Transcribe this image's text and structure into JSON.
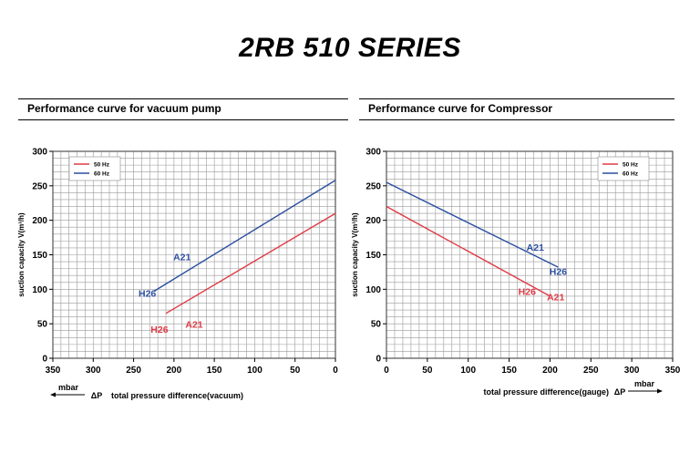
{
  "title": "2RB 510 SERIES",
  "chart_data": [
    {
      "type": "line",
      "title": "Performance curve for vacuum pump",
      "xlabel": "total pressure difference(vacuum)",
      "x_unit": "mbar",
      "delta_p": "ΔP",
      "ylabel": "suction capacity V(m³/h)",
      "xlim": [
        350,
        0
      ],
      "ylim": [
        0,
        300
      ],
      "x_ticks": [
        "350",
        "300",
        "250",
        "200",
        "150",
        "100",
        "50",
        "0"
      ],
      "y_ticks": [
        "0",
        "50",
        "100",
        "150",
        "200",
        "250",
        "300"
      ],
      "grid": true,
      "legend_position": "top-left",
      "series": [
        {
          "name": "50 Hz",
          "color": "#e03a45",
          "x": [
            210,
            0
          ],
          "y": [
            65,
            210
          ]
        },
        {
          "name": "60 Hz",
          "color": "#2b4ea0",
          "x": [
            225,
            0
          ],
          "y": [
            97,
            258
          ]
        }
      ],
      "annotations": [
        {
          "text": "A21",
          "x": 175,
          "y": 44,
          "color": "#e03a45"
        },
        {
          "text": "H26",
          "x": 218,
          "y": 37,
          "color": "#e03a45"
        },
        {
          "text": "A21",
          "x": 190,
          "y": 142,
          "color": "#2b4ea0"
        },
        {
          "text": "H26",
          "x": 233,
          "y": 89,
          "color": "#2b4ea0"
        }
      ]
    },
    {
      "type": "line",
      "title": "Performance curve for Compressor",
      "xlabel": "total pressure difference(gauge)",
      "x_unit": "mbar",
      "delta_p": "ΔP",
      "ylabel": "suction capacity V(m³/h)",
      "xlim": [
        0,
        350
      ],
      "ylim": [
        0,
        300
      ],
      "x_ticks": [
        "0",
        "50",
        "100",
        "150",
        "200",
        "250",
        "300",
        "350"
      ],
      "y_ticks": [
        "0",
        "50",
        "100",
        "150",
        "200",
        "250",
        "300"
      ],
      "grid": true,
      "legend_position": "top-right",
      "series": [
        {
          "name": "50 Hz",
          "color": "#e03a45",
          "x": [
            0,
            200
          ],
          "y": [
            220,
            90
          ]
        },
        {
          "name": "60 Hz",
          "color": "#2b4ea0",
          "x": [
            0,
            210
          ],
          "y": [
            255,
            132
          ]
        }
      ],
      "annotations": [
        {
          "text": "A21",
          "x": 182,
          "y": 156,
          "color": "#2b4ea0"
        },
        {
          "text": "H26",
          "x": 210,
          "y": 121,
          "color": "#2b4ea0"
        },
        {
          "text": "H26",
          "x": 172,
          "y": 92,
          "color": "#e03a45"
        },
        {
          "text": "A21",
          "x": 207,
          "y": 84,
          "color": "#e03a45"
        }
      ]
    }
  ]
}
